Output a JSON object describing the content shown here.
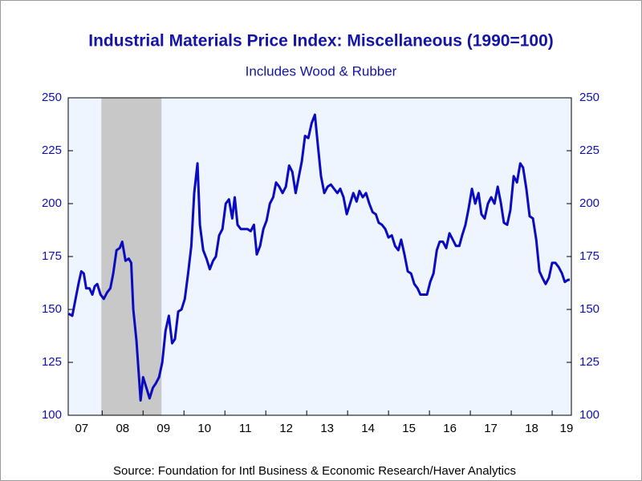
{
  "chart_data": {
    "type": "line",
    "title": "Industrial Materials Price Index: Miscellaneous (1990=100)",
    "subtitle": "Includes Wood & Rubber",
    "source": "Source:  Foundation for Intl Business & Economic Research/Haver Analytics",
    "xlim": [
      7.17,
      19.47
    ],
    "ylim": [
      100,
      250
    ],
    "yticks": [
      100,
      125,
      150,
      175,
      200,
      225,
      250
    ],
    "y2lim": [
      100,
      250
    ],
    "y2ticks": [
      100,
      125,
      150,
      175,
      200,
      225,
      250
    ],
    "xticks": [
      {
        "value": 7.5,
        "label": "07"
      },
      {
        "value": 8.5,
        "label": "08"
      },
      {
        "value": 9.5,
        "label": "09"
      },
      {
        "value": 10.5,
        "label": "10"
      },
      {
        "value": 11.5,
        "label": "11"
      },
      {
        "value": 12.5,
        "label": "12"
      },
      {
        "value": 13.5,
        "label": "13"
      },
      {
        "value": 14.5,
        "label": "14"
      },
      {
        "value": 15.5,
        "label": "15"
      },
      {
        "value": 16.5,
        "label": "16"
      },
      {
        "value": 17.5,
        "label": "17"
      },
      {
        "value": 18.5,
        "label": "18"
      },
      {
        "value": 19.5,
        "label": "19"
      }
    ],
    "shade": [
      7.98,
      9.45
    ],
    "shade_color": "#c8c8c8",
    "grid": false,
    "series": [
      {
        "color": "#0a0ac0",
        "x": [
          7.18,
          7.27,
          7.37,
          7.43,
          7.49,
          7.55,
          7.61,
          7.69,
          7.76,
          7.82,
          7.88,
          7.96,
          8.04,
          8.12,
          8.2,
          8.27,
          8.35,
          8.43,
          8.49,
          8.57,
          8.65,
          8.71,
          8.76,
          8.84,
          8.94,
          9.0,
          9.08,
          9.16,
          9.24,
          9.31,
          9.39,
          9.47,
          9.55,
          9.63,
          9.71,
          9.78,
          9.86,
          9.94,
          10.02,
          10.1,
          10.18,
          10.25,
          10.33,
          10.39,
          10.47,
          10.55,
          10.63,
          10.71,
          10.78,
          10.86,
          10.94,
          11.02,
          11.1,
          11.18,
          11.24,
          11.31,
          11.39,
          11.47,
          11.55,
          11.63,
          11.71,
          11.78,
          11.86,
          11.94,
          12.02,
          12.1,
          12.18,
          12.25,
          12.33,
          12.41,
          12.49,
          12.57,
          12.65,
          12.73,
          12.8,
          12.88,
          12.96,
          13.04,
          13.12,
          13.2,
          13.27,
          13.35,
          13.43,
          13.51,
          13.59,
          13.67,
          13.75,
          13.82,
          13.9,
          13.98,
          14.06,
          14.14,
          14.22,
          14.29,
          14.37,
          14.45,
          14.53,
          14.61,
          14.69,
          14.76,
          14.84,
          14.92,
          15.0,
          15.08,
          15.16,
          15.24,
          15.31,
          15.39,
          15.47,
          15.55,
          15.63,
          15.71,
          15.78,
          15.86,
          15.94,
          16.02,
          16.1,
          16.18,
          16.25,
          16.33,
          16.41,
          16.49,
          16.57,
          16.65,
          16.73,
          16.8,
          16.88,
          16.96,
          17.04,
          17.12,
          17.2,
          17.27,
          17.35,
          17.43,
          17.51,
          17.59,
          17.67,
          17.75,
          17.82,
          17.9,
          17.98,
          18.06,
          18.14,
          18.22,
          18.29,
          18.37,
          18.45,
          18.53,
          18.61,
          18.69,
          18.76,
          18.84,
          18.92,
          19.0,
          19.08,
          19.16,
          19.24,
          19.31,
          19.39,
          19.43
        ],
        "values": [
          148,
          147,
          157,
          163,
          168,
          167,
          160,
          160,
          157,
          161,
          162,
          157,
          155,
          158,
          160,
          167,
          178,
          179,
          182,
          173,
          174,
          172,
          150,
          135,
          107,
          118,
          113,
          108,
          113,
          115,
          118,
          125,
          140,
          147,
          134,
          136,
          149,
          150,
          155,
          167,
          180,
          205,
          219,
          190,
          178,
          174,
          169,
          173,
          175,
          185,
          188,
          200,
          202,
          193,
          203,
          190,
          188,
          188,
          188,
          187,
          190,
          176,
          180,
          188,
          192,
          200,
          203,
          210,
          208,
          205,
          208,
          218,
          215,
          205,
          212,
          220,
          232,
          231,
          238,
          242,
          228,
          213,
          205,
          208,
          209,
          207,
          205,
          207,
          203,
          195,
          200,
          205,
          201,
          206,
          203,
          205,
          200,
          196,
          195,
          191,
          190,
          188,
          184,
          185,
          180,
          178,
          183,
          176,
          168,
          167,
          162,
          160,
          157,
          157,
          157,
          163,
          167,
          178,
          182,
          182,
          179,
          186,
          183,
          180,
          180,
          185,
          190,
          198,
          207,
          200,
          205,
          195,
          193,
          200,
          203,
          200,
          208,
          200,
          191,
          190,
          197,
          213,
          210,
          219,
          217,
          207,
          194,
          193,
          183,
          168,
          165,
          162,
          165,
          172,
          172,
          170,
          167,
          163,
          164,
          164
        ]
      }
    ]
  }
}
